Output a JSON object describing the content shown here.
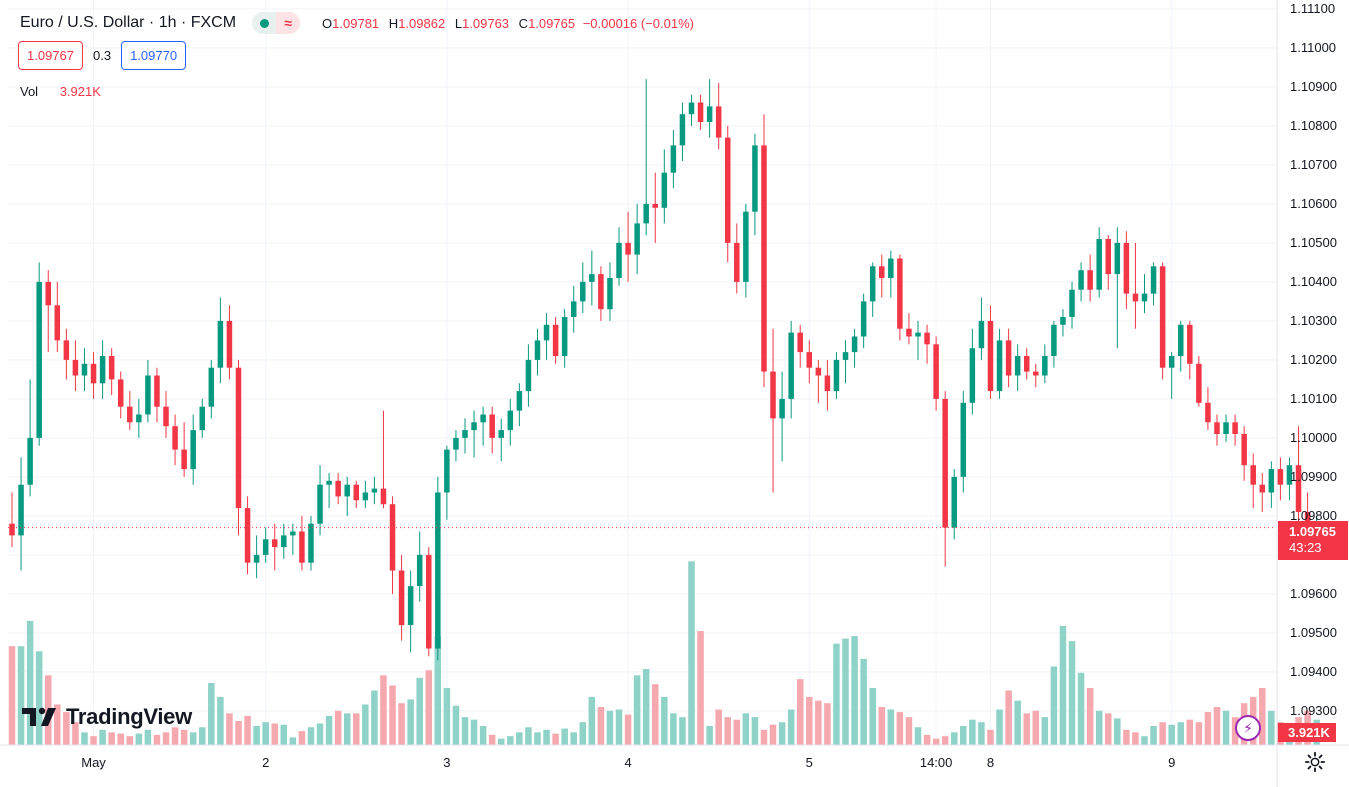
{
  "legend": {
    "symbol": "Euro / U.S. Dollar · 1h · FXCM",
    "ohlc": {
      "o": "1.09781",
      "h": "1.09862",
      "l": "1.09763",
      "c": "1.09765",
      "change": "−0.00016 (−0.01%)"
    },
    "bid": "1.09767",
    "spread": "0.3",
    "ask": "1.09770",
    "vol_label": "Vol",
    "vol_value": "3.921K"
  },
  "brand": "TradingView",
  "price_tag": {
    "price": "1.09765",
    "countdown": "43:23"
  },
  "vol_tag": "3.921K",
  "colors": {
    "up": "#089981",
    "down": "#f23645",
    "up_vol": "#8fd2c8",
    "down_vol": "#f5a9ae",
    "grid": "#f0f3fa",
    "text": "#131722"
  },
  "chart_data": {
    "type": "candlestick",
    "title": "Euro / U.S. Dollar · 1h · FXCM",
    "ylim": [
      1.0925,
      1.1111
    ],
    "y_ticks": [
      "1.09300",
      "1.09400",
      "1.09500",
      "1.09600",
      "1.09700",
      "1.09800",
      "1.09900",
      "1.10000",
      "1.10100",
      "1.10200",
      "1.10300",
      "1.10400",
      "1.10500",
      "1.10600",
      "1.10700",
      "1.10800",
      "1.10900",
      "1.11000",
      "1.11100"
    ],
    "x_ticks": [
      {
        "label": "May",
        "index": 9
      },
      {
        "label": "2",
        "index": 28
      },
      {
        "label": "3",
        "index": 48
      },
      {
        "label": "4",
        "index": 68
      },
      {
        "label": "5",
        "index": 88
      },
      {
        "label": "14:00",
        "index": 102
      },
      {
        "label": "8",
        "index": 108
      },
      {
        "label": "9",
        "index": 128
      }
    ],
    "candles": [
      [
        1.0978,
        1.0986,
        1.0972,
        1.0975
      ],
      [
        1.0975,
        1.0995,
        1.0966,
        1.0988
      ],
      [
        1.0988,
        1.1015,
        1.0985,
        1.1
      ],
      [
        1.1,
        1.1045,
        1.0998,
        1.104
      ],
      [
        1.104,
        1.1043,
        1.1022,
        1.1034
      ],
      [
        1.1034,
        1.104,
        1.1022,
        1.1025
      ],
      [
        1.1025,
        1.1028,
        1.1015,
        1.102
      ],
      [
        1.102,
        1.1025,
        1.1012,
        1.1016
      ],
      [
        1.1016,
        1.1023,
        1.1012,
        1.1019
      ],
      [
        1.1019,
        1.1022,
        1.101,
        1.1014
      ],
      [
        1.1014,
        1.1025,
        1.101,
        1.1021
      ],
      [
        1.1021,
        1.1023,
        1.1011,
        1.1015
      ],
      [
        1.1015,
        1.1017,
        1.1005,
        1.1008
      ],
      [
        1.1008,
        1.1012,
        1.1002,
        1.1004
      ],
      [
        1.1004,
        1.101,
        1.1,
        1.1006
      ],
      [
        1.1006,
        1.102,
        1.1004,
        1.1016
      ],
      [
        1.1016,
        1.1018,
        1.1004,
        1.1008
      ],
      [
        1.1008,
        1.1012,
        1.1,
        1.1003
      ],
      [
        1.1003,
        1.1006,
        1.0993,
        1.0997
      ],
      [
        1.0997,
        1.1004,
        1.099,
        1.0992
      ],
      [
        1.0992,
        1.1006,
        1.0988,
        1.1002
      ],
      [
        1.1002,
        1.101,
        1.1,
        1.1008
      ],
      [
        1.1008,
        1.102,
        1.1005,
        1.1018
      ],
      [
        1.1018,
        1.1036,
        1.1014,
        1.103
      ],
      [
        1.103,
        1.1034,
        1.1015,
        1.1018
      ],
      [
        1.1018,
        1.102,
        1.0975,
        1.0982
      ],
      [
        1.0982,
        1.0985,
        1.0965,
        1.0968
      ],
      [
        1.0968,
        1.0975,
        1.0964,
        1.097
      ],
      [
        1.097,
        1.0977,
        1.0968,
        1.0974
      ],
      [
        1.0974,
        1.0978,
        1.0966,
        1.0972
      ],
      [
        1.0972,
        1.0978,
        1.0969,
        1.0975
      ],
      [
        1.0975,
        1.0978,
        1.097,
        1.0976
      ],
      [
        1.0976,
        1.098,
        1.0966,
        1.0968
      ],
      [
        1.0968,
        1.098,
        1.0966,
        1.0978
      ],
      [
        1.0978,
        1.0993,
        1.0975,
        1.0988
      ],
      [
        1.0988,
        1.0991,
        1.0982,
        1.0989
      ],
      [
        1.0989,
        1.0991,
        1.0983,
        1.0985
      ],
      [
        1.0985,
        1.099,
        1.098,
        1.0988
      ],
      [
        1.0988,
        1.0989,
        1.0982,
        1.0984
      ],
      [
        1.0984,
        1.0989,
        1.0982,
        1.0986
      ],
      [
        1.0986,
        1.099,
        1.0983,
        1.0987
      ],
      [
        1.0987,
        1.1007,
        1.0982,
        1.0983
      ],
      [
        1.0983,
        1.0985,
        1.096,
        1.0966
      ],
      [
        1.0966,
        1.097,
        1.0948,
        1.0952
      ],
      [
        1.0952,
        1.0966,
        1.0945,
        1.0962
      ],
      [
        1.0962,
        1.0976,
        1.0958,
        1.097
      ],
      [
        1.097,
        1.0972,
        1.0944,
        1.0946
      ],
      [
        1.0946,
        1.099,
        1.0943,
        1.0986
      ],
      [
        1.0986,
        1.0998,
        1.0979,
        1.0997
      ],
      [
        1.0997,
        1.1002,
        1.0994,
        1.1
      ],
      [
        1.1,
        1.1005,
        1.0996,
        1.1002
      ],
      [
        1.1002,
        1.1007,
        1.0995,
        1.1004
      ],
      [
        1.1004,
        1.1008,
        1.0998,
        1.1006
      ],
      [
        1.1006,
        1.1008,
        1.0996,
        1.1
      ],
      [
        1.1,
        1.1005,
        1.0994,
        1.1002
      ],
      [
        1.1002,
        1.101,
        1.0998,
        1.1007
      ],
      [
        1.1007,
        1.1014,
        1.1003,
        1.1012
      ],
      [
        1.1012,
        1.1024,
        1.1008,
        1.102
      ],
      [
        1.102,
        1.1028,
        1.1016,
        1.1025
      ],
      [
        1.1025,
        1.1032,
        1.102,
        1.1029
      ],
      [
        1.1029,
        1.1031,
        1.1019,
        1.1021
      ],
      [
        1.1021,
        1.1033,
        1.1018,
        1.1031
      ],
      [
        1.1031,
        1.1039,
        1.1027,
        1.1035
      ],
      [
        1.1035,
        1.1045,
        1.1032,
        1.104
      ],
      [
        1.104,
        1.1048,
        1.1034,
        1.1042
      ],
      [
        1.1042,
        1.1044,
        1.103,
        1.1033
      ],
      [
        1.1033,
        1.1045,
        1.103,
        1.1041
      ],
      [
        1.1041,
        1.1054,
        1.1039,
        1.105
      ],
      [
        1.105,
        1.1058,
        1.104,
        1.1047
      ],
      [
        1.1047,
        1.106,
        1.1042,
        1.1055
      ],
      [
        1.1055,
        1.1092,
        1.1052,
        1.106
      ],
      [
        1.106,
        1.1068,
        1.105,
        1.1059
      ],
      [
        1.1059,
        1.1074,
        1.1055,
        1.1068
      ],
      [
        1.1068,
        1.1079,
        1.1064,
        1.1075
      ],
      [
        1.1075,
        1.1086,
        1.1071,
        1.1083
      ],
      [
        1.1083,
        1.1088,
        1.108,
        1.1086
      ],
      [
        1.1086,
        1.1088,
        1.1079,
        1.1081
      ],
      [
        1.1081,
        1.1092,
        1.1077,
        1.1085
      ],
      [
        1.1085,
        1.1091,
        1.1074,
        1.1077
      ],
      [
        1.1077,
        1.108,
        1.1045,
        1.105
      ],
      [
        1.105,
        1.1055,
        1.1037,
        1.104
      ],
      [
        1.104,
        1.106,
        1.1036,
        1.1058
      ],
      [
        1.1058,
        1.1078,
        1.1052,
        1.1075
      ],
      [
        1.1075,
        1.1083,
        1.1013,
        1.1017
      ],
      [
        1.1017,
        1.1028,
        1.0986,
        1.1005
      ],
      [
        1.1005,
        1.1017,
        1.0994,
        1.101
      ],
      [
        1.101,
        1.103,
        1.1005,
        1.1027
      ],
      [
        1.1027,
        1.1029,
        1.1018,
        1.1022
      ],
      [
        1.1022,
        1.1025,
        1.1014,
        1.1018
      ],
      [
        1.1018,
        1.102,
        1.1009,
        1.1016
      ],
      [
        1.1016,
        1.102,
        1.1007,
        1.1012
      ],
      [
        1.1012,
        1.1022,
        1.101,
        1.102
      ],
      [
        1.102,
        1.1025,
        1.1014,
        1.1022
      ],
      [
        1.1022,
        1.1028,
        1.1018,
        1.1026
      ],
      [
        1.1026,
        1.1037,
        1.1023,
        1.1035
      ],
      [
        1.1035,
        1.1045,
        1.1031,
        1.1044
      ],
      [
        1.1044,
        1.1047,
        1.1036,
        1.1041
      ],
      [
        1.1041,
        1.1048,
        1.1036,
        1.1046
      ],
      [
        1.1046,
        1.1047,
        1.1025,
        1.1028
      ],
      [
        1.1028,
        1.1032,
        1.1024,
        1.1026
      ],
      [
        1.1026,
        1.103,
        1.102,
        1.1027
      ],
      [
        1.1027,
        1.1029,
        1.1019,
        1.1024
      ],
      [
        1.1024,
        1.1026,
        1.1007,
        1.101
      ],
      [
        1.101,
        1.1012,
        1.0967,
        1.0977
      ],
      [
        1.0977,
        1.0992,
        1.0974,
        1.099
      ],
      [
        1.099,
        1.1012,
        1.0986,
        1.1009
      ],
      [
        1.1009,
        1.1028,
        1.1006,
        1.1023
      ],
      [
        1.1023,
        1.1036,
        1.102,
        1.103
      ],
      [
        1.103,
        1.1034,
        1.101,
        1.1012
      ],
      [
        1.1012,
        1.1028,
        1.101,
        1.1025
      ],
      [
        1.1025,
        1.1028,
        1.1013,
        1.1016
      ],
      [
        1.1016,
        1.1024,
        1.1012,
        1.1021
      ],
      [
        1.1021,
        1.1023,
        1.1015,
        1.1017
      ],
      [
        1.1017,
        1.1019,
        1.1013,
        1.1016
      ],
      [
        1.1016,
        1.1024,
        1.1014,
        1.1021
      ],
      [
        1.1021,
        1.103,
        1.1018,
        1.1029
      ],
      [
        1.1029,
        1.1033,
        1.1026,
        1.1031
      ],
      [
        1.1031,
        1.104,
        1.1028,
        1.1038
      ],
      [
        1.1038,
        1.1045,
        1.1035,
        1.1043
      ],
      [
        1.1043,
        1.1047,
        1.1035,
        1.1038
      ],
      [
        1.1038,
        1.1054,
        1.1036,
        1.1051
      ],
      [
        1.1051,
        1.1052,
        1.1038,
        1.1042
      ],
      [
        1.1042,
        1.1054,
        1.1023,
        1.105
      ],
      [
        1.105,
        1.1053,
        1.1033,
        1.1037
      ],
      [
        1.1037,
        1.105,
        1.1028,
        1.1035
      ],
      [
        1.1035,
        1.1042,
        1.1032,
        1.1037
      ],
      [
        1.1037,
        1.1045,
        1.1034,
        1.1044
      ],
      [
        1.1044,
        1.1045,
        1.1015,
        1.1018
      ],
      [
        1.1018,
        1.1022,
        1.101,
        1.1021
      ],
      [
        1.1021,
        1.103,
        1.1017,
        1.1029
      ],
      [
        1.1029,
        1.103,
        1.1015,
        1.1019
      ],
      [
        1.1019,
        1.1021,
        1.1008,
        1.1009
      ],
      [
        1.1009,
        1.1013,
        1.1002,
        1.1004
      ],
      [
        1.1004,
        1.1006,
        1.0998,
        1.1001
      ],
      [
        1.1001,
        1.1006,
        1.0999,
        1.1004
      ],
      [
        1.1004,
        1.1006,
        1.0998,
        1.1001
      ],
      [
        1.1001,
        1.1003,
        1.0989,
        1.0993
      ],
      [
        1.0993,
        1.0996,
        1.0982,
        1.0988
      ],
      [
        1.0988,
        1.0991,
        1.0981,
        1.0986
      ],
      [
        1.0986,
        1.0994,
        1.0982,
        1.0992
      ],
      [
        1.0992,
        1.0995,
        1.0984,
        1.0988
      ],
      [
        1.0988,
        1.0995,
        1.0984,
        1.0993
      ],
      [
        1.0993,
        1.1003,
        1.0978,
        1.0981
      ],
      [
        1.0981,
        1.0986,
        1.0973,
        1.0977
      ],
      [
        1.0977,
        1.098,
        1.0976,
        1.0977
      ]
    ],
    "volume": [
      0.78,
      0.78,
      0.98,
      0.74,
      0.55,
      0.32,
      0.26,
      0.18,
      0.1,
      0.07,
      0.12,
      0.1,
      0.09,
      0.07,
      0.09,
      0.12,
      0.08,
      0.1,
      0.14,
      0.12,
      0.1,
      0.14,
      0.49,
      0.38,
      0.25,
      0.19,
      0.23,
      0.15,
      0.18,
      0.17,
      0.16,
      0.06,
      0.11,
      0.14,
      0.17,
      0.23,
      0.27,
      0.25,
      0.25,
      0.32,
      0.43,
      0.55,
      0.47,
      0.33,
      0.36,
      0.53,
      0.59,
      0.86,
      0.45,
      0.31,
      0.22,
      0.2,
      0.15,
      0.08,
      0.05,
      0.07,
      0.1,
      0.14,
      0.1,
      0.12,
      0.09,
      0.13,
      0.1,
      0.18,
      0.38,
      0.3,
      0.27,
      0.28,
      0.24,
      0.55,
      0.6,
      0.48,
      0.38,
      0.25,
      0.22,
      1.45,
      0.9,
      0.15,
      0.28,
      0.22,
      0.2,
      0.25,
      0.22,
      0.12,
      0.16,
      0.18,
      0.28,
      0.52,
      0.38,
      0.35,
      0.33,
      0.8,
      0.84,
      0.86,
      0.68,
      0.45,
      0.3,
      0.28,
      0.26,
      0.22,
      0.14,
      0.08,
      0.05,
      0.07,
      0.1,
      0.15,
      0.2,
      0.18,
      0.12,
      0.28,
      0.43,
      0.35,
      0.25,
      0.27,
      0.22,
      0.62,
      0.94,
      0.82,
      0.57,
      0.45,
      0.27,
      0.25,
      0.21,
      0.12,
      0.1,
      0.07,
      0.15,
      0.18,
      0.16,
      0.18,
      0.2,
      0.18,
      0.26,
      0.3,
      0.27,
      0.22,
      0.33,
      0.38,
      0.45,
      0.27,
      0.18,
      0.17,
      0.22,
      0.27,
      0.2,
      0.12,
      0.1,
      0.08,
      0.1,
      0.3,
      0.24,
      0.16,
      0.12,
      0.14,
      0.12,
      0.14,
      0.08,
      0.48,
      0.1
    ]
  }
}
